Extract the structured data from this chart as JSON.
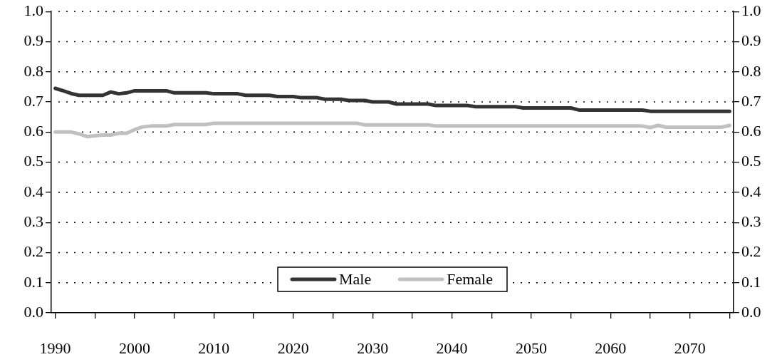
{
  "chart_data": {
    "type": "line",
    "x": [
      1990,
      1991,
      1992,
      1993,
      1994,
      1995,
      1996,
      1997,
      1998,
      1999,
      2000,
      2001,
      2002,
      2003,
      2004,
      2005,
      2006,
      2007,
      2008,
      2009,
      2010,
      2011,
      2012,
      2013,
      2014,
      2015,
      2016,
      2017,
      2018,
      2019,
      2020,
      2021,
      2022,
      2023,
      2024,
      2025,
      2026,
      2027,
      2028,
      2029,
      2030,
      2031,
      2032,
      2033,
      2034,
      2035,
      2036,
      2037,
      2038,
      2039,
      2040,
      2041,
      2042,
      2043,
      2044,
      2045,
      2046,
      2047,
      2048,
      2049,
      2050,
      2051,
      2052,
      2053,
      2054,
      2055,
      2056,
      2057,
      2058,
      2059,
      2060,
      2061,
      2062,
      2063,
      2064,
      2065,
      2066,
      2067,
      2068,
      2069,
      2070,
      2071,
      2072,
      2073,
      2074,
      2075
    ],
    "series": [
      {
        "name": "Male",
        "color": "#333333",
        "values": [
          0.745,
          0.737,
          0.728,
          0.722,
          0.722,
          0.722,
          0.722,
          0.733,
          0.727,
          0.73,
          0.737,
          0.737,
          0.737,
          0.737,
          0.737,
          0.73,
          0.73,
          0.73,
          0.73,
          0.73,
          0.727,
          0.727,
          0.727,
          0.727,
          0.722,
          0.722,
          0.722,
          0.722,
          0.718,
          0.718,
          0.718,
          0.714,
          0.714,
          0.714,
          0.709,
          0.709,
          0.709,
          0.705,
          0.705,
          0.705,
          0.7,
          0.7,
          0.7,
          0.693,
          0.693,
          0.693,
          0.693,
          0.693,
          0.688,
          0.688,
          0.688,
          0.688,
          0.688,
          0.684,
          0.684,
          0.684,
          0.684,
          0.684,
          0.684,
          0.68,
          0.68,
          0.68,
          0.68,
          0.68,
          0.68,
          0.68,
          0.673,
          0.673,
          0.673,
          0.673,
          0.673,
          0.673,
          0.673,
          0.673,
          0.673,
          0.669,
          0.669,
          0.669,
          0.669,
          0.669,
          0.669,
          0.669,
          0.669,
          0.669,
          0.669,
          0.669
        ]
      },
      {
        "name": "Female",
        "color": "#c0c0c0",
        "values": [
          0.6,
          0.6,
          0.6,
          0.594,
          0.585,
          0.588,
          0.59,
          0.59,
          0.596,
          0.596,
          0.608,
          0.617,
          0.62,
          0.62,
          0.62,
          0.625,
          0.625,
          0.625,
          0.625,
          0.625,
          0.629,
          0.629,
          0.629,
          0.629,
          0.629,
          0.629,
          0.629,
          0.629,
          0.629,
          0.629,
          0.629,
          0.629,
          0.629,
          0.629,
          0.629,
          0.629,
          0.629,
          0.629,
          0.629,
          0.624,
          0.624,
          0.624,
          0.624,
          0.624,
          0.624,
          0.624,
          0.624,
          0.624,
          0.62,
          0.62,
          0.62,
          0.62,
          0.62,
          0.62,
          0.62,
          0.62,
          0.62,
          0.62,
          0.62,
          0.62,
          0.62,
          0.62,
          0.62,
          0.62,
          0.62,
          0.62,
          0.62,
          0.62,
          0.62,
          0.62,
          0.62,
          0.62,
          0.62,
          0.62,
          0.62,
          0.615,
          0.622,
          0.616,
          0.616,
          0.616,
          0.616,
          0.616,
          0.616,
          0.616,
          0.616,
          0.622
        ]
      }
    ],
    "xlim": [
      1989.5,
      2075.5
    ],
    "xticks": [
      1990,
      {
        "value": 1995,
        "label": null
      },
      2000,
      {
        "value": 2005,
        "label": null
      },
      2010,
      {
        "value": 2015,
        "label": null
      },
      2020,
      {
        "value": 2025,
        "label": null
      },
      2030,
      {
        "value": 2035,
        "label": null
      },
      2040,
      {
        "value": 2045,
        "label": null
      },
      2050,
      {
        "value": 2055,
        "label": null
      },
      2060,
      {
        "value": 2065,
        "label": null
      },
      2070,
      {
        "value": 2075,
        "label": null
      }
    ],
    "ylim": [
      0,
      1
    ],
    "yticks": [
      {
        "value": 0,
        "label": "0.0"
      },
      0.1,
      0.2,
      0.3,
      0.4,
      0.5,
      0.6,
      0.7,
      0.8,
      0.9,
      {
        "value": 1,
        "label": "1.0"
      }
    ],
    "y2lim": [
      0,
      1
    ],
    "y2ticks": [
      {
        "value": 0,
        "label": "0.0"
      },
      0.1,
      0.2,
      0.3,
      0.4,
      0.5,
      0.6,
      0.7,
      0.8,
      0.9,
      {
        "value": 1,
        "label": "1.0"
      }
    ],
    "grid": "y",
    "legend": "bottom",
    "marker": "none",
    "line_style": "solid"
  }
}
